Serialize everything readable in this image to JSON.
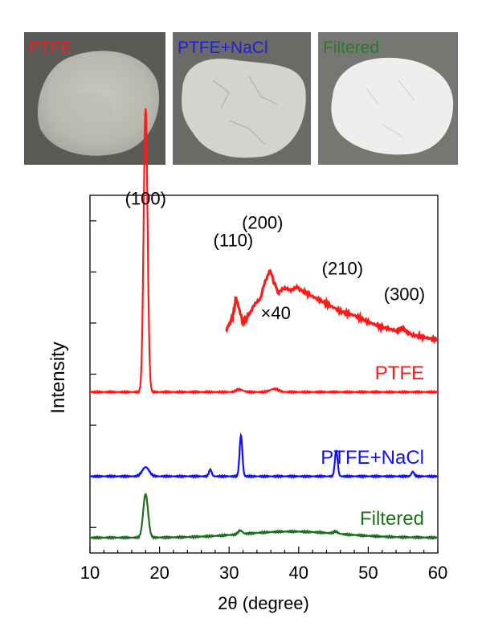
{
  "photos": [
    {
      "label": "PTFE",
      "color": "#ee2222"
    },
    {
      "label": "PTFE+NaCl",
      "color": "#1e1ee0"
    },
    {
      "label": "Filtered",
      "color": "#2a7a2a"
    }
  ],
  "chart_data": {
    "type": "line",
    "title": "",
    "xlabel": "2θ (degree)",
    "ylabel": "Intensity",
    "xlim": [
      10,
      60
    ],
    "xticks": [
      10,
      20,
      30,
      40,
      50,
      60
    ],
    "grid": false,
    "series": [
      {
        "name": "PTFE",
        "color": "#ff1a1a",
        "baseline": 3.15,
        "peaks": [
          [
            18.0,
            5.55,
            0.28
          ],
          [
            31.5,
            0.05,
            0.5
          ],
          [
            36.5,
            0.06,
            0.6
          ]
        ]
      },
      {
        "name": "PTFE+NaCl",
        "color": "#1010ff",
        "baseline": 1.5,
        "peaks": [
          [
            18.0,
            0.18,
            0.5
          ],
          [
            27.3,
            0.13,
            0.2
          ],
          [
            31.7,
            0.8,
            0.2
          ],
          [
            45.4,
            0.5,
            0.2
          ],
          [
            56.4,
            0.09,
            0.2
          ]
        ]
      },
      {
        "name": "Filtered",
        "color": "#1e6e1e",
        "baseline": 0.3,
        "hump": [
          39,
          7,
          0.12
        ],
        "peaks": [
          [
            18.0,
            0.85,
            0.35
          ],
          [
            31.6,
            0.07,
            0.3
          ],
          [
            45.3,
            0.04,
            0.3
          ]
        ]
      }
    ],
    "inset": {
      "label": "×40",
      "color": "#ff1a1a",
      "x": [
        29.5,
        30.5,
        31.0,
        32.0,
        33.0,
        34.5,
        35.8,
        37.0,
        38.5,
        40.0,
        42.0,
        44.0,
        46.0,
        48.0,
        50.0,
        52.0,
        54.0,
        55.0,
        56.0,
        58.0,
        60.0
      ],
      "y": [
        4.35,
        4.6,
        5.0,
        4.5,
        4.7,
        5.0,
        5.55,
        5.1,
        5.18,
        5.17,
        5.02,
        4.88,
        4.73,
        4.65,
        4.52,
        4.42,
        4.35,
        4.4,
        4.28,
        4.22,
        4.17
      ]
    },
    "annotations": [
      {
        "text": "(100)",
        "x": 18.0,
        "y": 6.82
      },
      {
        "text": "(110)",
        "x": 30.6,
        "y": 6.0
      },
      {
        "text": "(200)",
        "x": 34.8,
        "y": 6.35
      },
      {
        "text": "(210)",
        "x": 46.3,
        "y": 5.45
      },
      {
        "text": "(300)",
        "x": 55.2,
        "y": 4.95
      }
    ]
  }
}
